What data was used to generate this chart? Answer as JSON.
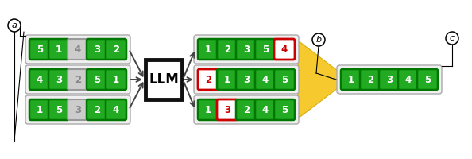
{
  "input_rows": [
    {
      "numbers": [
        5,
        1,
        4,
        3,
        2
      ],
      "gray_idx": 2
    },
    {
      "numbers": [
        4,
        3,
        2,
        5,
        1
      ],
      "gray_idx": 2
    },
    {
      "numbers": [
        1,
        5,
        3,
        2,
        4
      ],
      "gray_idx": 2
    }
  ],
  "output_rows": [
    {
      "numbers": [
        1,
        2,
        3,
        5,
        4
      ],
      "red_idx": 4
    },
    {
      "numbers": [
        2,
        1,
        3,
        4,
        5
      ],
      "red_idx": 0
    },
    {
      "numbers": [
        1,
        3,
        2,
        4,
        5
      ],
      "red_idx": 1
    }
  ],
  "final_row": {
    "numbers": [
      1,
      2,
      3,
      4,
      5
    ],
    "red_idx": -1
  },
  "llm_label": "LLM",
  "label_a": "a",
  "label_b": "b",
  "label_c": "c",
  "green_fill": "#22aa22",
  "green_border": "#007700",
  "red_fill": "#cc0000",
  "gray_fill": "#cccccc",
  "gray_border": "#999999",
  "arrow_color": "#444444",
  "gold_color": "#f5c518",
  "llm_border": "#111111",
  "llm_bg": "#ffffff",
  "row_bg": "#f0f0f0",
  "row_border": "#aaaaaa"
}
